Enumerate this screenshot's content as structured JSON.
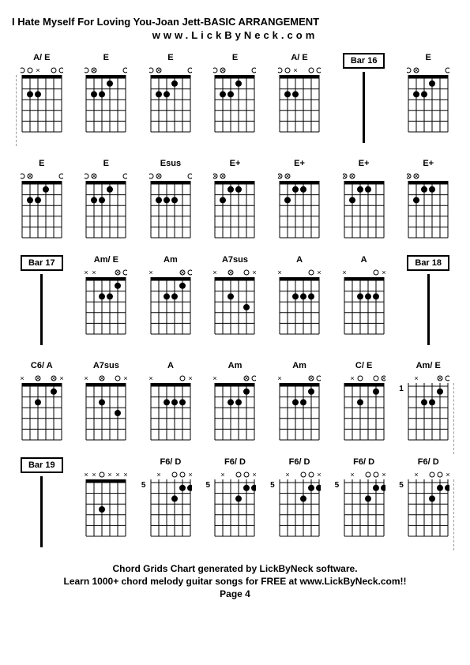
{
  "title": "I Hate Myself For Loving You-Joan Jett-BASIC ARRANGEMENT",
  "url": "www.LickByNeck.com",
  "footer": {
    "line1": "Chord Grids Chart generated by LickByNeck software.",
    "line2": "Learn 1000+ chord melody guitar songs for FREE at www.LickByNeck.com!!",
    "page": "Page 4"
  },
  "colors": {
    "bg": "#ffffff",
    "fg": "#000000",
    "grid": "#000000"
  },
  "diagram": {
    "width": 50,
    "height": 72,
    "strings": 6,
    "frets": 5,
    "nut_height": 4
  },
  "rows": [
    [
      {
        "type": "chord",
        "name": "A/ E",
        "markers": "  x   ",
        "dots": [
          [
            2,
            3
          ],
          [
            2,
            4
          ]
        ],
        "open": [
          0,
          1,
          4,
          5
        ],
        "muted": [
          2
        ],
        "dashed_left": true
      },
      {
        "type": "chord",
        "name": "E",
        "markers": " x    ",
        "dots": [
          [
            1,
            2
          ],
          [
            2,
            3
          ],
          [
            2,
            4
          ]
        ],
        "open": [
          0,
          1,
          5
        ],
        "muted": [
          4
        ]
      },
      {
        "type": "chord",
        "name": "E",
        "markers": " x    ",
        "dots": [
          [
            1,
            2
          ],
          [
            2,
            3
          ],
          [
            2,
            4
          ]
        ],
        "open": [
          0,
          1,
          5
        ],
        "muted": [
          4
        ]
      },
      {
        "type": "chord",
        "name": "E",
        "markers": " x    ",
        "dots": [
          [
            1,
            2
          ],
          [
            2,
            3
          ],
          [
            2,
            4
          ]
        ],
        "open": [
          0,
          1,
          5
        ],
        "muted": [
          4
        ]
      },
      {
        "type": "chord",
        "name": "A/ E",
        "markers": "  x   ",
        "dots": [
          [
            2,
            3
          ],
          [
            2,
            4
          ]
        ],
        "open": [
          0,
          1,
          4,
          5
        ],
        "muted": [
          2
        ]
      },
      {
        "type": "bar",
        "label": "Bar 16"
      },
      {
        "type": "chord",
        "name": "E",
        "markers": " x    ",
        "dots": [
          [
            1,
            2
          ],
          [
            2,
            3
          ],
          [
            2,
            4
          ]
        ],
        "open": [
          0,
          1,
          5
        ],
        "muted": [
          4
        ]
      }
    ],
    [
      {
        "type": "chord",
        "name": "E",
        "markers": " x    ",
        "dots": [
          [
            1,
            2
          ],
          [
            2,
            3
          ],
          [
            2,
            4
          ]
        ],
        "open": [
          0,
          1,
          5
        ],
        "muted": [
          4
        ]
      },
      {
        "type": "chord",
        "name": "E",
        "markers": " x    ",
        "dots": [
          [
            1,
            2
          ],
          [
            2,
            3
          ],
          [
            2,
            4
          ]
        ],
        "open": [
          0,
          1,
          5
        ],
        "muted": [
          4
        ]
      },
      {
        "type": "chord",
        "name": "Esus",
        "markers": " x    ",
        "dots": [
          [
            2,
            2
          ],
          [
            2,
            3
          ],
          [
            2,
            4
          ]
        ],
        "open": [
          0,
          1,
          5
        ],
        "muted": [
          4
        ]
      },
      {
        "type": "chord",
        "name": "E+",
        "markers": "xx    ",
        "dots": [
          [
            1,
            2
          ],
          [
            1,
            3
          ],
          [
            2,
            4
          ]
        ],
        "open": [
          0,
          1
        ],
        "muted": [
          4,
          5
        ]
      },
      {
        "type": "chord",
        "name": "E+",
        "markers": "xx    ",
        "dots": [
          [
            1,
            2
          ],
          [
            1,
            3
          ],
          [
            2,
            4
          ]
        ],
        "open": [
          0,
          1
        ],
        "muted": [
          4,
          5
        ]
      },
      {
        "type": "chord",
        "name": "E+",
        "markers": "xx    ",
        "dots": [
          [
            1,
            2
          ],
          [
            1,
            3
          ],
          [
            2,
            4
          ]
        ],
        "open": [
          0,
          1
        ],
        "muted": [
          4,
          5
        ]
      },
      {
        "type": "chord",
        "name": "E+",
        "markers": "xx    ",
        "dots": [
          [
            1,
            2
          ],
          [
            1,
            3
          ],
          [
            2,
            4
          ]
        ],
        "open": [
          0,
          1
        ],
        "muted": [
          4,
          5
        ]
      }
    ],
    [
      {
        "type": "bar",
        "label": "Bar 17"
      },
      {
        "type": "chord",
        "name": "Am/ E",
        "markers": "xx  x ",
        "dots": [
          [
            1,
            1
          ],
          [
            2,
            2
          ],
          [
            2,
            3
          ]
        ],
        "open": [
          4,
          5
        ],
        "muted": [
          0,
          4
        ]
      },
      {
        "type": "chord",
        "name": "Am",
        "markers": "x   x ",
        "dots": [
          [
            1,
            1
          ],
          [
            2,
            2
          ],
          [
            2,
            3
          ]
        ],
        "open": [
          4,
          5
        ],
        "muted": [
          0
        ]
      },
      {
        "type": "chord",
        "name": "A7sus",
        "markers": "x x  x",
        "dots": [
          [
            2,
            3
          ],
          [
            3,
            1
          ]
        ],
        "open": [
          2,
          4
        ],
        "muted": [
          0,
          5
        ]
      },
      {
        "type": "chord",
        "name": "A",
        "markers": "x    x",
        "dots": [
          [
            2,
            1
          ],
          [
            2,
            2
          ],
          [
            2,
            3
          ]
        ],
        "open": [
          4
        ],
        "muted": [
          0,
          5
        ]
      },
      {
        "type": "chord",
        "name": "A",
        "markers": "x    x",
        "dots": [
          [
            2,
            1
          ],
          [
            2,
            2
          ],
          [
            2,
            3
          ]
        ],
        "open": [
          4
        ],
        "muted": [
          0,
          5
        ]
      },
      {
        "type": "bar",
        "label": "Bar 18"
      }
    ],
    [
      {
        "type": "chord",
        "name": "C6/ A",
        "markers": "x x xx",
        "dots": [
          [
            1,
            1
          ],
          [
            2,
            3
          ]
        ],
        "open": [
          2,
          4
        ],
        "muted": [
          0,
          5
        ]
      },
      {
        "type": "chord",
        "name": "A7sus",
        "markers": "x x  x",
        "dots": [
          [
            2,
            3
          ],
          [
            3,
            1
          ]
        ],
        "open": [
          2,
          4
        ],
        "muted": [
          0,
          5
        ]
      },
      {
        "type": "chord",
        "name": "A",
        "markers": "x    x",
        "dots": [
          [
            2,
            1
          ],
          [
            2,
            2
          ],
          [
            2,
            3
          ]
        ],
        "open": [
          4
        ],
        "muted": [
          0,
          5
        ]
      },
      {
        "type": "chord",
        "name": "Am",
        "markers": "x   x ",
        "dots": [
          [
            1,
            1
          ],
          [
            2,
            2
          ],
          [
            2,
            3
          ]
        ],
        "open": [
          4,
          5
        ],
        "muted": [
          0
        ]
      },
      {
        "type": "chord",
        "name": "Am",
        "markers": "x   x ",
        "dots": [
          [
            1,
            1
          ],
          [
            2,
            2
          ],
          [
            2,
            3
          ]
        ],
        "open": [
          4,
          5
        ],
        "muted": [
          0
        ]
      },
      {
        "type": "chord",
        "name": "C/ E",
        "markers": " x   x",
        "dots": [
          [
            1,
            1
          ],
          [
            2,
            3
          ]
        ],
        "open": [
          2,
          4,
          5
        ],
        "muted": [
          0
        ]
      },
      {
        "type": "chord",
        "name": "Am/ E",
        "markers": " x  x ",
        "dots": [
          [
            1,
            1
          ],
          [
            2,
            2
          ],
          [
            2,
            3
          ]
        ],
        "open": [
          4,
          5
        ],
        "muted": [],
        "fret_start": 1,
        "dashed_right": true
      }
    ],
    [
      {
        "type": "bar",
        "label": "Bar 19"
      },
      {
        "type": "chord",
        "name": "",
        "markers": "xx xxx",
        "dots": [
          [
            3,
            3
          ]
        ],
        "open": [
          2
        ],
        "muted": [
          0,
          1,
          4,
          5
        ]
      },
      {
        "type": "chord",
        "name": "F6/ D",
        "markers": " x   x",
        "dots": [
          [
            1,
            0
          ],
          [
            1,
            1
          ],
          [
            2,
            2
          ]
        ],
        "open": [
          3,
          4
        ],
        "muted": [
          5
        ],
        "fret_start": 5
      },
      {
        "type": "chord",
        "name": "F6/ D",
        "markers": " x   x",
        "dots": [
          [
            1,
            0
          ],
          [
            1,
            1
          ],
          [
            2,
            2
          ]
        ],
        "open": [
          3,
          4
        ],
        "muted": [
          5
        ],
        "fret_start": 5
      },
      {
        "type": "chord",
        "name": "F6/ D",
        "markers": " x   x",
        "dots": [
          [
            1,
            0
          ],
          [
            1,
            1
          ],
          [
            2,
            2
          ]
        ],
        "open": [
          3,
          4
        ],
        "muted": [
          5
        ],
        "fret_start": 5
      },
      {
        "type": "chord",
        "name": "F6/ D",
        "markers": " x   x",
        "dots": [
          [
            1,
            0
          ],
          [
            1,
            1
          ],
          [
            2,
            2
          ]
        ],
        "open": [
          3,
          4
        ],
        "muted": [
          5
        ],
        "fret_start": 5
      },
      {
        "type": "chord",
        "name": "F6/ D",
        "markers": " x   x",
        "dots": [
          [
            1,
            0
          ],
          [
            1,
            1
          ],
          [
            2,
            2
          ]
        ],
        "open": [
          3,
          4
        ],
        "muted": [
          5
        ],
        "fret_start": 5,
        "dashed_right": true
      }
    ]
  ]
}
